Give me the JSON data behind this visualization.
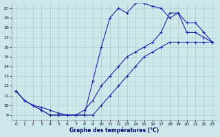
{
  "xlabel": "Graphe des températures (°C)",
  "xlim": [
    -0.5,
    23.5
  ],
  "ylim": [
    8.5,
    20.5
  ],
  "xticks": [
    0,
    1,
    2,
    3,
    4,
    5,
    6,
    7,
    8,
    9,
    10,
    11,
    12,
    13,
    14,
    15,
    16,
    17,
    18,
    19,
    20,
    21,
    22,
    23
  ],
  "yticks": [
    9,
    10,
    11,
    12,
    13,
    14,
    15,
    16,
    17,
    18,
    19,
    20
  ],
  "bg_color": "#cce8ea",
  "grid_color": "#aacccc",
  "line_color": "#2222aa",
  "line1_x": [
    0,
    1,
    2,
    3,
    4,
    5,
    6,
    7,
    8,
    9,
    10,
    11,
    12,
    13,
    14,
    15,
    16,
    17,
    18,
    19,
    20,
    21,
    22,
    23
  ],
  "line1_y": [
    11.5,
    10.5,
    10.0,
    9.5,
    9.0,
    9.0,
    9.0,
    9.0,
    9.0,
    12.5,
    16.0,
    19.0,
    20.0,
    19.5,
    20.5,
    20.5,
    20.2,
    20.0,
    19.0,
    19.5,
    17.5,
    17.5,
    17.0,
    16.5
  ],
  "line2_x": [
    0,
    1,
    2,
    3,
    4,
    5,
    6,
    7,
    8,
    9,
    10,
    11,
    12,
    13,
    14,
    15,
    16,
    17,
    18,
    19,
    20,
    21,
    22,
    23
  ],
  "line2_y": [
    11.5,
    10.5,
    10.0,
    9.5,
    9.0,
    9.0,
    9.0,
    9.0,
    9.0,
    9.0,
    10.0,
    11.0,
    12.0,
    13.0,
    14.0,
    15.0,
    15.5,
    16.0,
    16.5,
    16.5,
    16.5,
    16.5,
    16.5,
    16.5
  ],
  "line3_x": [
    0,
    1,
    2,
    3,
    4,
    5,
    6,
    7,
    8,
    9,
    10,
    11,
    12,
    13,
    14,
    15,
    16,
    17,
    18,
    19,
    20,
    21,
    22,
    23
  ],
  "line3_y": [
    11.5,
    10.5,
    10.0,
    9.8,
    9.5,
    9.2,
    9.0,
    9.0,
    9.5,
    10.5,
    12.0,
    13.0,
    14.0,
    15.0,
    15.5,
    16.0,
    16.5,
    17.5,
    19.5,
    19.5,
    18.5,
    18.5,
    17.5,
    16.5
  ]
}
